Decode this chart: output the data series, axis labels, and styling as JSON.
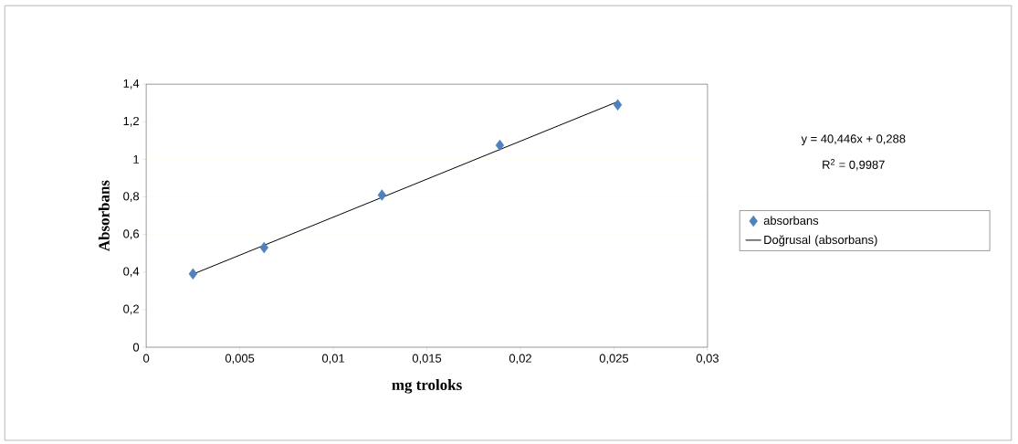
{
  "chart_data": {
    "type": "scatter",
    "xlabel": "mg troloks",
    "ylabel": "Absorbans",
    "x": [
      0.0025,
      0.0063,
      0.0126,
      0.0189,
      0.0252
    ],
    "series": [
      {
        "name": "absorbans",
        "color": "#4f81bd",
        "values": [
          0.39,
          0.53,
          0.81,
          1.075,
          1.29
        ]
      },
      {
        "name": "Doğrusal (absorbans)",
        "type": "line",
        "color": "#000000",
        "marker": "none",
        "x": [
          0.0025,
          0.0252
        ],
        "values": [
          0.389,
          1.307
        ]
      }
    ],
    "marker": "diamond",
    "grid": "y",
    "legend": "right",
    "annotations": [
      "y = 40,446x + 0,288",
      "R$^{2}$ = 0,9987"
    ],
    "xlim": [
      0,
      0.03
    ],
    "ylim": [
      0,
      1.4
    ],
    "xticks": [
      0,
      {
        "value": 0.005,
        "label": "0,005"
      },
      {
        "value": 0.01,
        "label": "0,01"
      },
      {
        "value": 0.015,
        "label": "0,015"
      },
      {
        "value": 0.02,
        "label": "0,02"
      },
      {
        "value": 0.025,
        "label": "0,025"
      },
      {
        "value": 0.03,
        "label": "0,03"
      }
    ],
    "yticks": [
      0,
      {
        "value": 0.2,
        "label": "0,2"
      },
      {
        "value": 0.4,
        "label": "0,4"
      },
      {
        "value": 0.6,
        "label": "0,6"
      },
      {
        "value": 0.8,
        "label": "0,8"
      },
      1,
      {
        "value": 1.2,
        "label": "1,2"
      },
      {
        "value": 1.4,
        "label": "1,4"
      }
    ]
  }
}
